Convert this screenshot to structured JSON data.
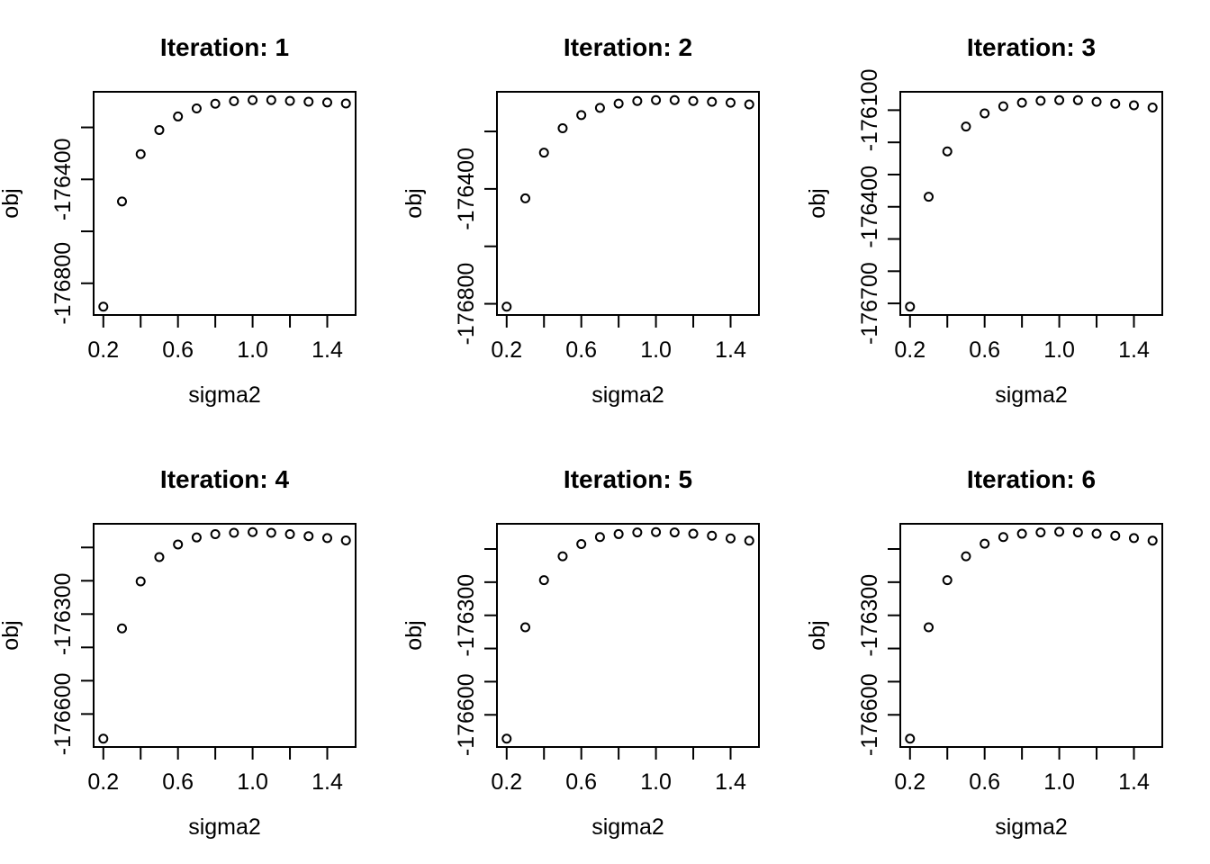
{
  "figure": {
    "background": "#ffffff",
    "foreground": "#000000",
    "marker": "open-circle",
    "marker_color": "#000000",
    "panel_count": 6,
    "rows": 2,
    "cols": 3
  },
  "chart_data": [
    {
      "type": "scatter",
      "title": "Iteration: 1",
      "xlabel": "sigma2",
      "ylabel": "obj",
      "xlim": [
        0.148,
        1.552
      ],
      "ylim": [
        -176922,
        -176063
      ],
      "x_ticks": {
        "values": [
          0.2,
          0.4,
          0.6,
          0.8,
          1.0,
          1.2,
          1.4
        ],
        "labels": [
          "0.2",
          "",
          "0.6",
          "",
          "1.0",
          "",
          "1.4"
        ]
      },
      "y_ticks": {
        "values": [
          -176200,
          -176400,
          -176600,
          -176800
        ],
        "labels": [
          "",
          "-176400",
          "",
          "-176800"
        ]
      },
      "x": [
        0.2,
        0.3,
        0.4,
        0.5,
        0.6,
        0.7,
        0.8,
        0.9,
        1.0,
        1.1,
        1.2,
        1.3,
        1.4,
        1.5
      ],
      "y": [
        -176890,
        -176485,
        -176303,
        -176210,
        -176158,
        -176127,
        -176109,
        -176099,
        -176095,
        -176095,
        -176098,
        -176101,
        -176104,
        -176108
      ]
    },
    {
      "type": "scatter",
      "title": "Iteration: 2",
      "xlabel": "sigma2",
      "ylabel": "obj",
      "xlim": [
        0.148,
        1.552
      ],
      "ylim": [
        -176839,
        -176062
      ],
      "x_ticks": {
        "values": [
          0.2,
          0.4,
          0.6,
          0.8,
          1.0,
          1.2,
          1.4
        ],
        "labels": [
          "0.2",
          "",
          "0.6",
          "",
          "1.0",
          "",
          "1.4"
        ]
      },
      "y_ticks": {
        "values": [
          -176200,
          -176400,
          -176600,
          -176800
        ],
        "labels": [
          "",
          "-176400",
          "",
          "-176800"
        ]
      },
      "x": [
        0.2,
        0.3,
        0.4,
        0.5,
        0.6,
        0.7,
        0.8,
        0.9,
        1.0,
        1.1,
        1.2,
        1.3,
        1.4,
        1.5
      ],
      "y": [
        -176810,
        -176433,
        -176274,
        -176189,
        -176143,
        -176118,
        -176103,
        -176094,
        -176091,
        -176091,
        -176094,
        -176097,
        -176100,
        -176106
      ]
    },
    {
      "type": "scatter",
      "title": "Iteration: 3",
      "xlabel": "sigma2",
      "ylabel": "obj",
      "xlim": [
        0.148,
        1.552
      ],
      "ylim": [
        -176736,
        -176043
      ],
      "x_ticks": {
        "values": [
          0.2,
          0.4,
          0.6,
          0.8,
          1.0,
          1.2,
          1.4
        ],
        "labels": [
          "0.2",
          "",
          "0.6",
          "",
          "1.0",
          "",
          "1.4"
        ]
      },
      "y_ticks": {
        "values": [
          -176100,
          -176200,
          -176300,
          -176400,
          -176500,
          -176600,
          -176700
        ],
        "labels": [
          "-176100",
          "",
          "",
          "-176400",
          "",
          "",
          "-176700"
        ]
      },
      "x": [
        0.2,
        0.3,
        0.4,
        0.5,
        0.6,
        0.7,
        0.8,
        0.9,
        1.0,
        1.1,
        1.2,
        1.3,
        1.4,
        1.5
      ],
      "y": [
        -176710,
        -176369,
        -176228,
        -176151,
        -176110,
        -176088,
        -176077,
        -176071,
        -176069,
        -176069,
        -176074,
        -176080,
        -176085,
        -176092
      ]
    },
    {
      "type": "scatter",
      "title": "Iteration: 4",
      "xlabel": "sigma2",
      "ylabel": "obj",
      "xlim": [
        0.148,
        1.552
      ],
      "ylim": [
        -176699,
        -176029
      ],
      "x_ticks": {
        "values": [
          0.2,
          0.4,
          0.6,
          0.8,
          1.0,
          1.2,
          1.4
        ],
        "labels": [
          "0.2",
          "",
          "0.6",
          "",
          "1.0",
          "",
          "1.4"
        ]
      },
      "y_ticks": {
        "values": [
          -176100,
          -176200,
          -176300,
          -176400,
          -176500,
          -176600
        ],
        "labels": [
          "",
          "",
          "-176300",
          "",
          "",
          "-176600"
        ]
      },
      "x": [
        0.2,
        0.3,
        0.4,
        0.5,
        0.6,
        0.7,
        0.8,
        0.9,
        1.0,
        1.1,
        1.2,
        1.3,
        1.4,
        1.5
      ],
      "y": [
        -176674,
        -176343,
        -176202,
        -176129,
        -176091,
        -176070,
        -176060,
        -176056,
        -176054,
        -176056,
        -176060,
        -176066,
        -176072,
        -176079
      ]
    },
    {
      "type": "scatter",
      "title": "Iteration: 5",
      "xlabel": "sigma2",
      "ylabel": "obj",
      "xlim": [
        0.148,
        1.552
      ],
      "ylim": [
        -176697,
        -176024
      ],
      "x_ticks": {
        "values": [
          0.2,
          0.4,
          0.6,
          0.8,
          1.0,
          1.2,
          1.4
        ],
        "labels": [
          "0.2",
          "",
          "0.6",
          "",
          "1.0",
          "",
          "1.4"
        ]
      },
      "y_ticks": {
        "values": [
          -176100,
          -176200,
          -176300,
          -176400,
          -176500,
          -176600
        ],
        "labels": [
          "",
          "",
          "-176300",
          "",
          "",
          "-176600"
        ]
      },
      "x": [
        0.2,
        0.3,
        0.4,
        0.5,
        0.6,
        0.7,
        0.8,
        0.9,
        1.0,
        1.1,
        1.2,
        1.3,
        1.4,
        1.5
      ],
      "y": [
        -176672,
        -176336,
        -176194,
        -176122,
        -176085,
        -176064,
        -176055,
        -176050,
        -176049,
        -176050,
        -176054,
        -176060,
        -176068,
        -176075
      ]
    },
    {
      "type": "scatter",
      "title": "Iteration: 6",
      "xlabel": "sigma2",
      "ylabel": "obj",
      "xlim": [
        0.148,
        1.552
      ],
      "ylim": [
        -176697,
        -176024
      ],
      "x_ticks": {
        "values": [
          0.2,
          0.4,
          0.6,
          0.8,
          1.0,
          1.2,
          1.4
        ],
        "labels": [
          "0.2",
          "",
          "0.6",
          "",
          "1.0",
          "",
          "1.4"
        ]
      },
      "y_ticks": {
        "values": [
          -176100,
          -176200,
          -176300,
          -176400,
          -176500,
          -176600
        ],
        "labels": [
          "",
          "",
          "-176300",
          "",
          "",
          "-176600"
        ]
      },
      "x": [
        0.2,
        0.3,
        0.4,
        0.5,
        0.6,
        0.7,
        0.8,
        0.9,
        1.0,
        1.1,
        1.2,
        1.3,
        1.4,
        1.5
      ],
      "y": [
        -176672,
        -176336,
        -176194,
        -176122,
        -176084,
        -176064,
        -176054,
        -176050,
        -176048,
        -176050,
        -176054,
        -176060,
        -176067,
        -176075
      ]
    }
  ]
}
